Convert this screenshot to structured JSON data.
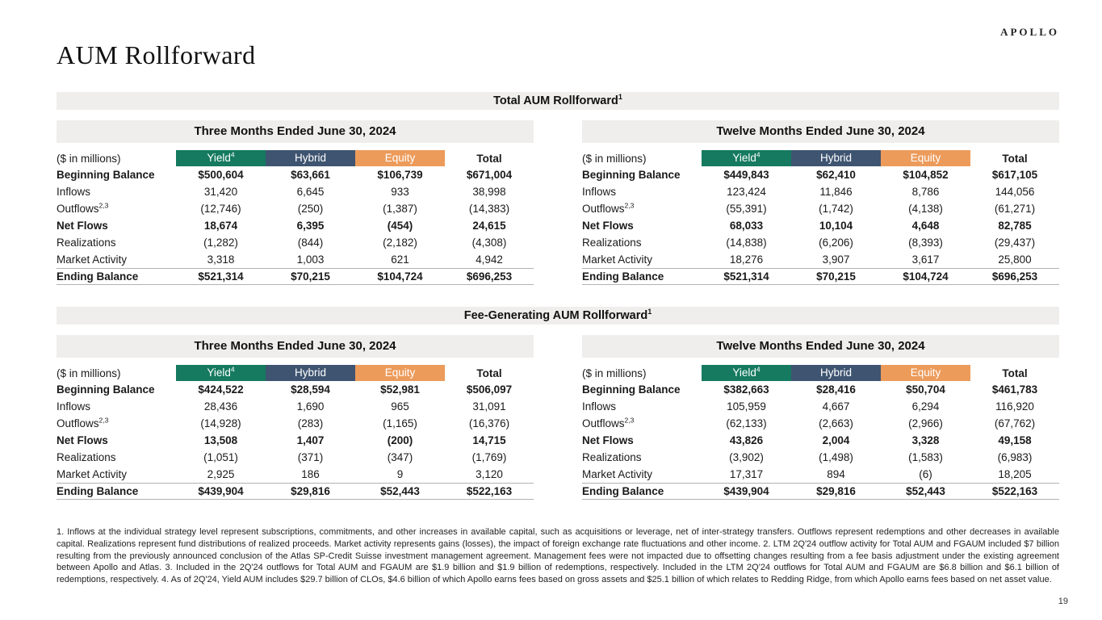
{
  "page": {
    "title": "AUM Rollforward",
    "brand": "APOLLO",
    "page_number": "19",
    "footnote": "1. Inflows at the individual strategy level represent subscriptions, commitments, and other increases in available capital, such as acquisitions or leverage, net of inter-strategy transfers. Outflows represent redemptions and other decreases in available capital. Realizations represent fund distributions of realized proceeds. Market activity represents gains (losses), the impact of foreign exchange rate fluctuations and other income. 2. LTM 2Q'24 outflow activity for Total AUM and FGAUM included $7 billion resulting from the previously announced conclusion of the Atlas SP-Credit Suisse investment management agreement. Management fees were not impacted due to offsetting changes resulting from a fee basis adjustment under the existing agreement between Apollo and Atlas. 3. Included in the 2Q'24 outflows for Total AUM and FGAUM are $1.9 billion and $1.9 billion of redemptions, respectively. Included in the LTM 2Q'24 outflows for Total AUM and FGAUM are $6.8 billion and $6.1 billion of redemptions, respectively. 4. As of 2Q'24, Yield AUM includes $29.7 billion of CLOs, $4.6 billion of which Apollo earns fees based on gross assets and $25.1 billion of which relates to Redding Ridge, from which Apollo earns fees based on net asset value."
  },
  "colors": {
    "yield": "#157a60",
    "hybrid": "#3e5471",
    "equity": "#ec9b5b",
    "banner-bg": "#efeeec"
  },
  "labels": {
    "units": "($ in millions)",
    "col_yield": "Yield",
    "col_yield_sup": "4",
    "col_hybrid": "Hybrid",
    "col_equity": "Equity",
    "col_total": "Total"
  },
  "sections": [
    {
      "title": "Total AUM Rollforward",
      "title_sup": "1",
      "tables": [
        {
          "period": "Three Months Ended June 30, 2024",
          "rows": [
            {
              "label": "Beginning Balance",
              "bold": true,
              "values": [
                "$500,604",
                "$63,661",
                "$106,739",
                "$671,004"
              ]
            },
            {
              "label": "Inflows",
              "bold": false,
              "values": [
                "31,420",
                "6,645",
                "933",
                "38,998"
              ]
            },
            {
              "label": "Outflows",
              "sup": "2,3",
              "bold": false,
              "values": [
                "(12,746)",
                "(250)",
                "(1,387)",
                "(14,383)"
              ]
            },
            {
              "label": "Net Flows",
              "bold": true,
              "values": [
                "18,674",
                "6,395",
                "(454)",
                "24,615"
              ]
            },
            {
              "label": "Realizations",
              "bold": false,
              "values": [
                "(1,282)",
                "(844)",
                "(2,182)",
                "(4,308)"
              ]
            },
            {
              "label": "Market Activity",
              "bold": false,
              "values": [
                "3,318",
                "1,003",
                "621",
                "4,942"
              ]
            },
            {
              "label": "Ending Balance",
              "bold": true,
              "values": [
                "$521,314",
                "$70,215",
                "$104,724",
                "$696,253"
              ]
            }
          ]
        },
        {
          "period": "Twelve Months Ended June 30, 2024",
          "rows": [
            {
              "label": "Beginning Balance",
              "bold": true,
              "values": [
                "$449,843",
                "$62,410",
                "$104,852",
                "$617,105"
              ]
            },
            {
              "label": "Inflows",
              "bold": false,
              "values": [
                "123,424",
                "11,846",
                "8,786",
                "144,056"
              ]
            },
            {
              "label": "Outflows",
              "sup": "2,3",
              "bold": false,
              "values": [
                "(55,391)",
                "(1,742)",
                "(4,138)",
                "(61,271)"
              ]
            },
            {
              "label": "Net Flows",
              "bold": true,
              "values": [
                "68,033",
                "10,104",
                "4,648",
                "82,785"
              ]
            },
            {
              "label": "Realizations",
              "bold": false,
              "values": [
                "(14,838)",
                "(6,206)",
                "(8,393)",
                "(29,437)"
              ]
            },
            {
              "label": "Market Activity",
              "bold": false,
              "values": [
                "18,276",
                "3,907",
                "3,617",
                "25,800"
              ]
            },
            {
              "label": "Ending Balance",
              "bold": true,
              "values": [
                "$521,314",
                "$70,215",
                "$104,724",
                "$696,253"
              ]
            }
          ]
        }
      ]
    },
    {
      "title": "Fee-Generating AUM Rollforward",
      "title_sup": "1",
      "tables": [
        {
          "period": "Three Months Ended June 30, 2024",
          "rows": [
            {
              "label": "Beginning Balance",
              "bold": true,
              "values": [
                "$424,522",
                "$28,594",
                "$52,981",
                "$506,097"
              ]
            },
            {
              "label": "Inflows",
              "bold": false,
              "values": [
                "28,436",
                "1,690",
                "965",
                "31,091"
              ]
            },
            {
              "label": "Outflows",
              "sup": "2,3",
              "bold": false,
              "values": [
                "(14,928)",
                "(283)",
                "(1,165)",
                "(16,376)"
              ]
            },
            {
              "label": "Net Flows",
              "bold": true,
              "values": [
                "13,508",
                "1,407",
                "(200)",
                "14,715"
              ]
            },
            {
              "label": "Realizations",
              "bold": false,
              "values": [
                "(1,051)",
                "(371)",
                "(347)",
                "(1,769)"
              ]
            },
            {
              "label": "Market Activity",
              "bold": false,
              "values": [
                "2,925",
                "186",
                "9",
                "3,120"
              ]
            },
            {
              "label": "Ending Balance",
              "bold": true,
              "values": [
                "$439,904",
                "$29,816",
                "$52,443",
                "$522,163"
              ]
            }
          ]
        },
        {
          "period": "Twelve Months Ended June 30, 2024",
          "rows": [
            {
              "label": "Beginning Balance",
              "bold": true,
              "values": [
                "$382,663",
                "$28,416",
                "$50,704",
                "$461,783"
              ]
            },
            {
              "label": "Inflows",
              "bold": false,
              "values": [
                "105,959",
                "4,667",
                "6,294",
                "116,920"
              ]
            },
            {
              "label": "Outflows",
              "sup": "2,3",
              "bold": false,
              "values": [
                "(62,133)",
                "(2,663)",
                "(2,966)",
                "(67,762)"
              ]
            },
            {
              "label": "Net Flows",
              "bold": true,
              "values": [
                "43,826",
                "2,004",
                "3,328",
                "49,158"
              ]
            },
            {
              "label": "Realizations",
              "bold": false,
              "values": [
                "(3,902)",
                "(1,498)",
                "(1,583)",
                "(6,983)"
              ]
            },
            {
              "label": "Market Activity",
              "bold": false,
              "values": [
                "17,317",
                "894",
                "(6)",
                "18,205"
              ]
            },
            {
              "label": "Ending Balance",
              "bold": true,
              "values": [
                "$439,904",
                "$29,816",
                "$52,443",
                "$522,163"
              ]
            }
          ]
        }
      ]
    }
  ]
}
